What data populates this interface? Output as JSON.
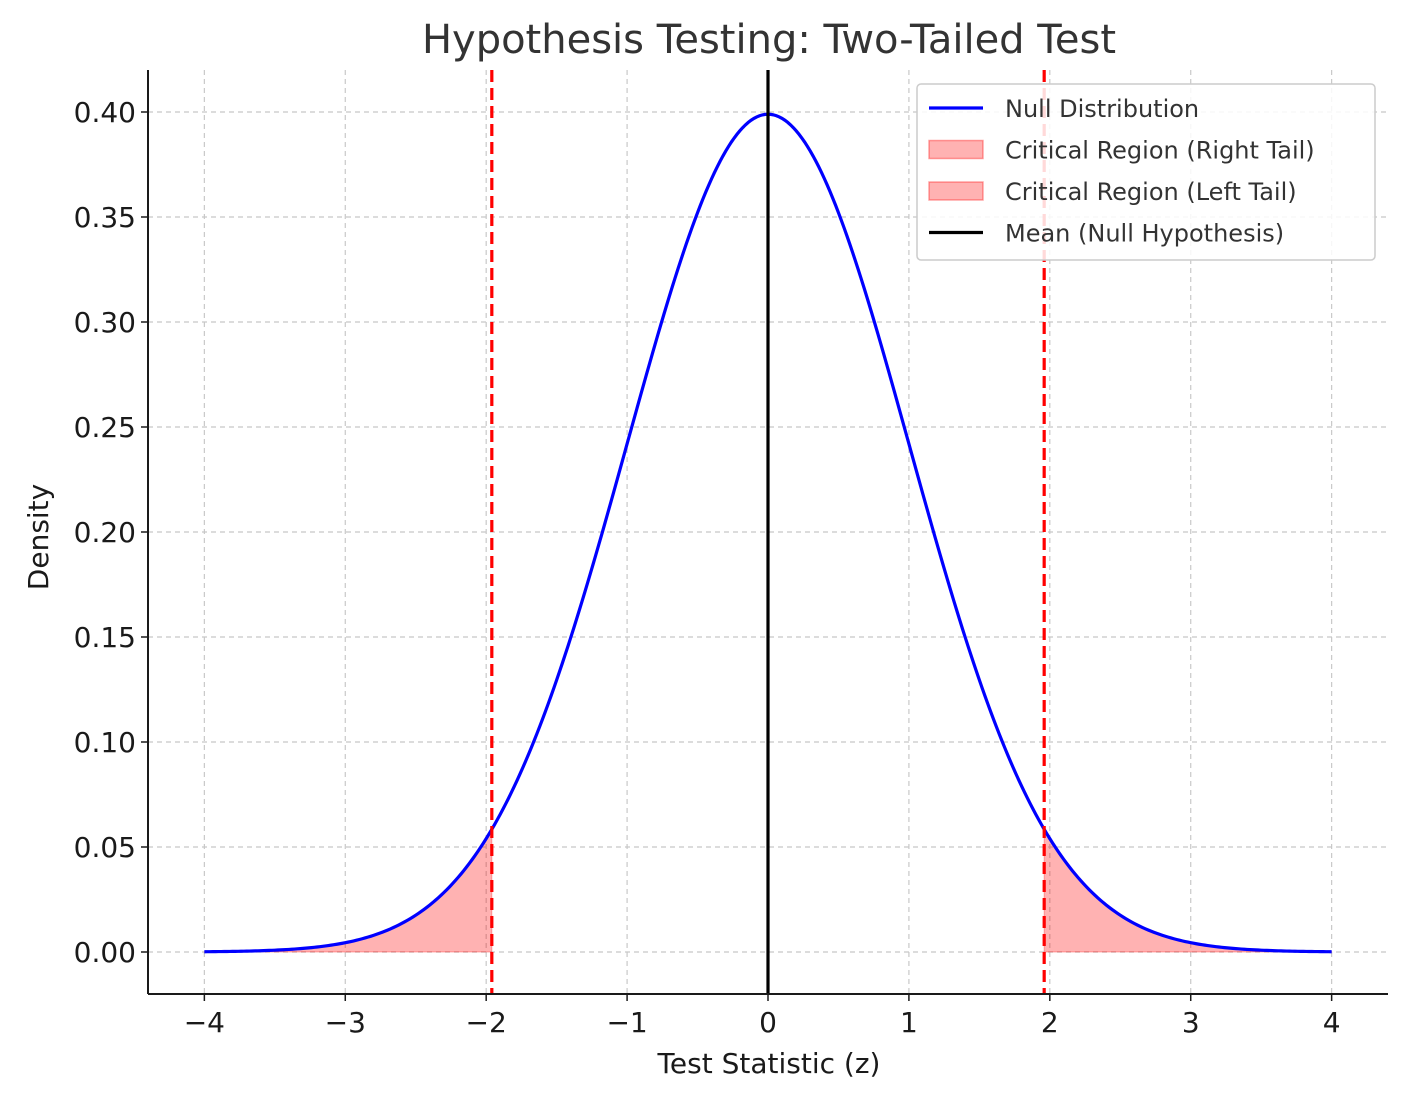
{
  "chart_data": {
    "type": "line",
    "title": "Hypothesis Testing: Two-Tailed Test",
    "xlabel": "Test Statistic (z)",
    "ylabel": "Density",
    "xlim": [
      -4.4,
      4.4
    ],
    "ylim": [
      -0.02,
      0.42
    ],
    "x_ticks": [
      -4,
      -3,
      -2,
      -1,
      0,
      1,
      2,
      3,
      4
    ],
    "x_tick_labels": [
      "−4",
      "−3",
      "−2",
      "−1",
      "0",
      "1",
      "2",
      "3",
      "4"
    ],
    "y_ticks": [
      0.0,
      0.05,
      0.1,
      0.15,
      0.2,
      0.25,
      0.3,
      0.35,
      0.4
    ],
    "y_tick_labels": [
      "0.00",
      "0.05",
      "0.10",
      "0.15",
      "0.20",
      "0.25",
      "0.30",
      "0.35",
      "0.40"
    ],
    "grid": true,
    "legend_position": "top-right",
    "series": [
      {
        "name": "Null Distribution",
        "kind": "line",
        "color": "#0000ff",
        "distribution": "standard normal",
        "x_range": [
          -4,
          4
        ]
      },
      {
        "name": "Critical Region (Right Tail)",
        "kind": "fill",
        "color": "#ff0000",
        "x_range": [
          1.96,
          4
        ]
      },
      {
        "name": "Critical Region (Left Tail)",
        "kind": "fill",
        "color": "#ff0000",
        "x_range": [
          -4,
          -1.96
        ]
      },
      {
        "name": "Mean (Null Hypothesis)",
        "kind": "vline",
        "color": "#000000",
        "x": 0
      }
    ],
    "critical_lines": {
      "values": [
        -1.96,
        1.96
      ],
      "color": "#ff0000",
      "style": "dashed"
    }
  }
}
